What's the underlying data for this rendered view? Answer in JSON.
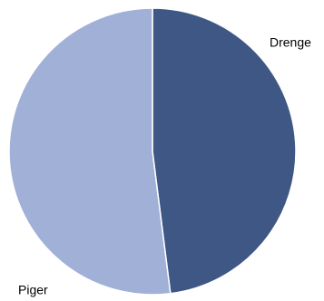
{
  "chart_data": {
    "type": "pie",
    "categories": [
      "Drenge",
      "Piger"
    ],
    "values": [
      48,
      52
    ],
    "colors": [
      "#3f5785",
      "#a0b0d6"
    ]
  }
}
